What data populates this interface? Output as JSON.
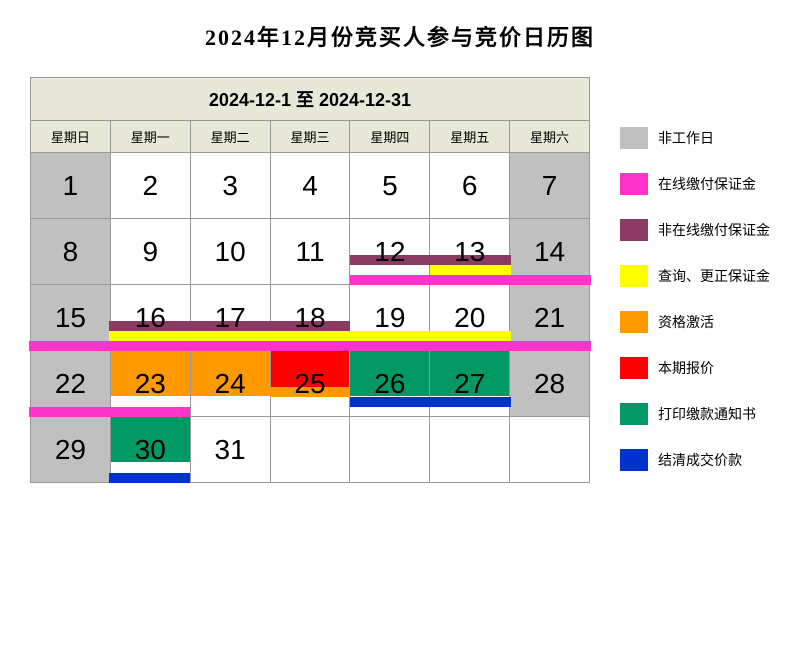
{
  "title": "2024年12月份竞买人参与竞价日历图",
  "date_range": "2024-12-1 至 2024-12-31",
  "weekdays": [
    "星期日",
    "星期一",
    "星期二",
    "星期三",
    "星期四",
    "星期五",
    "星期六"
  ],
  "colors": {
    "nonwork": "#c0c0c0",
    "online_deposit": "#ff33cc",
    "offline_deposit": "#8b3a62",
    "query_correct": "#ffff00",
    "qualify": "#ff9900",
    "quote": "#ff0000",
    "print_notice": "#009966",
    "settle": "#0033cc",
    "header_bg": "#e8e8d8"
  },
  "legend": [
    {
      "key": "nonwork",
      "label": "非工作日"
    },
    {
      "key": "online_deposit",
      "label": "在线缴付保证金"
    },
    {
      "key": "offline_deposit",
      "label": "非在线缴付保证金"
    },
    {
      "key": "query_correct",
      "label": "查询、更正保证金"
    },
    {
      "key": "qualify",
      "label": "资格激活"
    },
    {
      "key": "quote",
      "label": "本期报价"
    },
    {
      "key": "print_notice",
      "label": "打印缴款通知书"
    },
    {
      "key": "settle",
      "label": "结清成交价款"
    }
  ],
  "weeks": [
    {
      "days": [
        {
          "n": 1,
          "nonwork": true
        },
        {
          "n": 2
        },
        {
          "n": 3
        },
        {
          "n": 4
        },
        {
          "n": 5
        },
        {
          "n": 6
        },
        {
          "n": 7,
          "nonwork": true
        }
      ],
      "stripes": []
    },
    {
      "days": [
        {
          "n": 8,
          "nonwork": true
        },
        {
          "n": 9
        },
        {
          "n": 10
        },
        {
          "n": 11
        },
        {
          "n": 12
        },
        {
          "n": 13
        },
        {
          "n": 14,
          "nonwork": true
        }
      ],
      "stripes": [
        {
          "color": "offline_deposit",
          "start": 4,
          "end": 6
        },
        {
          "color": "query_correct",
          "start": 5,
          "end": 6
        },
        {
          "color": "online_deposit",
          "start": 4,
          "end": 7
        }
      ]
    },
    {
      "days": [
        {
          "n": 15,
          "nonwork": true
        },
        {
          "n": 16
        },
        {
          "n": 17
        },
        {
          "n": 18
        },
        {
          "n": 19
        },
        {
          "n": 20
        },
        {
          "n": 21,
          "nonwork": true
        }
      ],
      "stripes": [
        {
          "color": "offline_deposit",
          "start": 1,
          "end": 4
        },
        {
          "color": "query_correct",
          "start": 1,
          "end": 6
        },
        {
          "color": "online_deposit",
          "start": 0,
          "end": 7
        }
      ]
    },
    {
      "days": [
        {
          "n": 22,
          "nonwork": true
        },
        {
          "n": 23,
          "top": "qualify"
        },
        {
          "n": 24,
          "top": "qualify"
        },
        {
          "n": 25,
          "top": "quote"
        },
        {
          "n": 26,
          "top": "print_notice"
        },
        {
          "n": 27,
          "top": "print_notice"
        },
        {
          "n": 28,
          "nonwork": true
        }
      ],
      "stripes": [
        {
          "color": "qualify",
          "start": 3,
          "end": 4
        },
        {
          "color": "settle",
          "start": 4,
          "end": 6
        },
        {
          "color": "online_deposit",
          "start": 0,
          "end": 2
        }
      ]
    },
    {
      "days": [
        {
          "n": 29,
          "nonwork": true
        },
        {
          "n": 30,
          "top": "print_notice"
        },
        {
          "n": 31
        },
        {
          "n": null
        },
        {
          "n": null
        },
        {
          "n": null
        },
        {
          "n": null
        }
      ],
      "stripes": [
        {
          "color": "settle",
          "start": 1,
          "end": 2
        }
      ]
    }
  ]
}
